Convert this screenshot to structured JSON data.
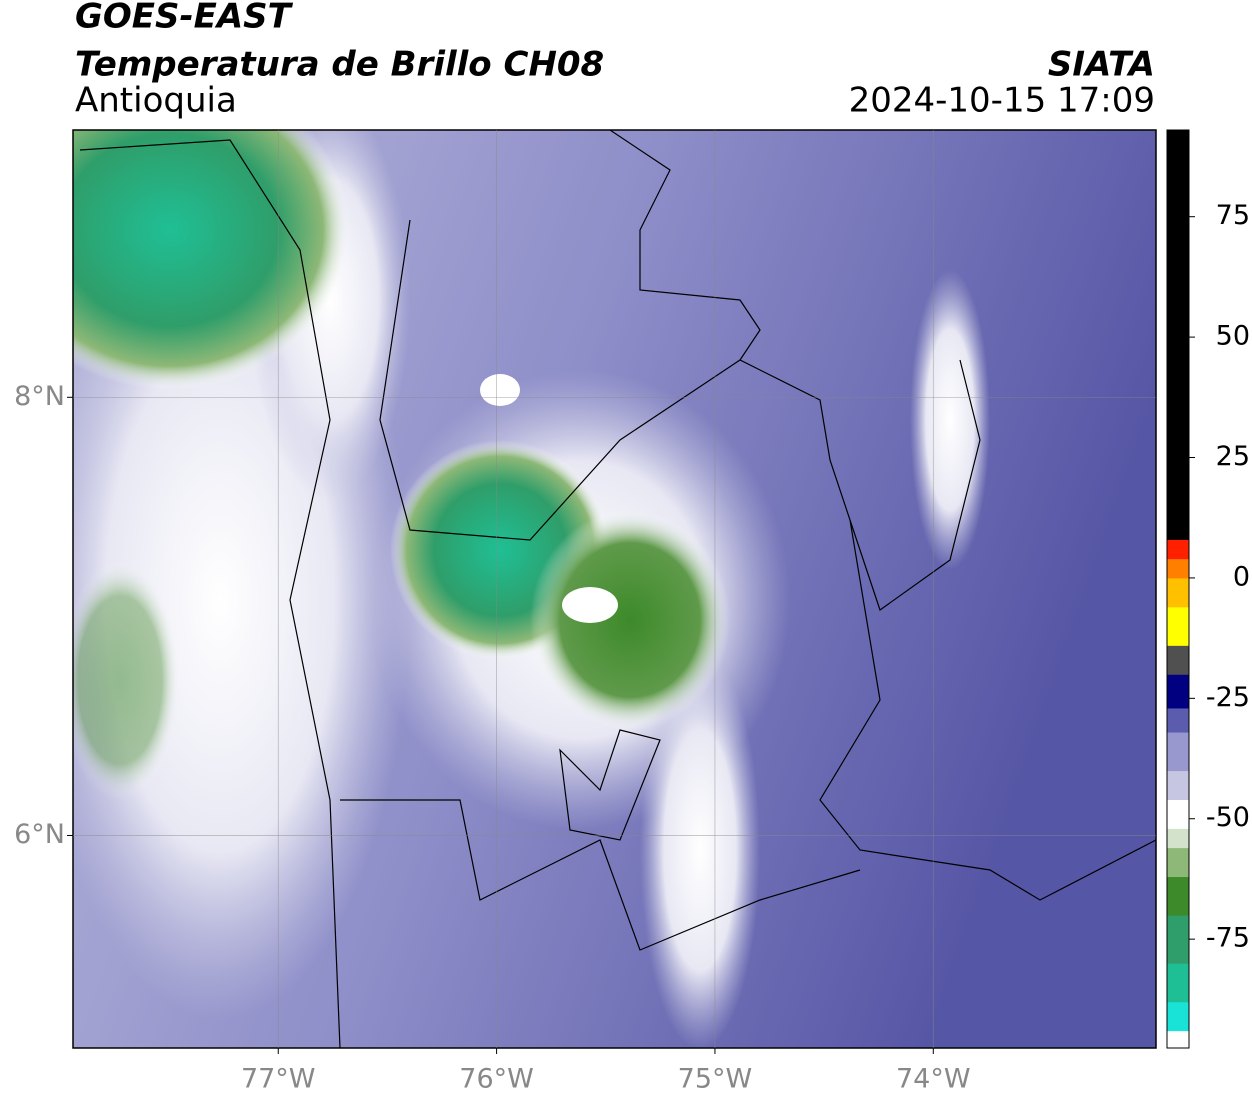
{
  "header": {
    "title": "GOES-EAST",
    "subtitle": "Temperatura de Brillo CH08",
    "region": "Antioquia",
    "source": "SIATA",
    "datetime": "2024-10-15 17:09"
  },
  "map": {
    "xlim": [
      -77.94,
      -72.98
    ],
    "ylim": [
      5.03,
      9.22
    ],
    "xticks": [
      {
        "value": -77,
        "label": "77°W"
      },
      {
        "value": -76,
        "label": "76°W"
      },
      {
        "value": -75,
        "label": "75°W"
      },
      {
        "value": -74,
        "label": "74°W"
      }
    ],
    "yticks": [
      {
        "value": 8,
        "label": "8°N"
      },
      {
        "value": 6,
        "label": "6°N"
      }
    ],
    "grid": true
  },
  "colorbar": {
    "range": [
      -97.6,
      93
    ],
    "ticks": [
      75,
      50,
      25,
      0,
      -25,
      -50,
      -75
    ],
    "stops": [
      {
        "value": -97.6,
        "color": "#ffffff"
      },
      {
        "value": -94,
        "color": "#19e3d6"
      },
      {
        "value": -88,
        "color": "#1fbf95"
      },
      {
        "value": -80,
        "color": "#2f9e6a"
      },
      {
        "value": -70,
        "color": "#3d8a2a"
      },
      {
        "value": -62,
        "color": "#8db877"
      },
      {
        "value": -56,
        "color": "#d3e3cb"
      },
      {
        "value": -52,
        "color": "#ffffff"
      },
      {
        "value": -46,
        "color": "#c6c6e2"
      },
      {
        "value": -40,
        "color": "#9898ce"
      },
      {
        "value": -32,
        "color": "#5c5cae"
      },
      {
        "value": -27,
        "color": "#000080"
      },
      {
        "value": -20,
        "color": "#505050"
      },
      {
        "value": -14,
        "color": "#ffff00"
      },
      {
        "value": -6,
        "color": "#ffc000"
      },
      {
        "value": 0,
        "color": "#ff8000"
      },
      {
        "value": 4,
        "color": "#ff2000"
      },
      {
        "value": 8,
        "color": "#000000"
      }
    ]
  }
}
